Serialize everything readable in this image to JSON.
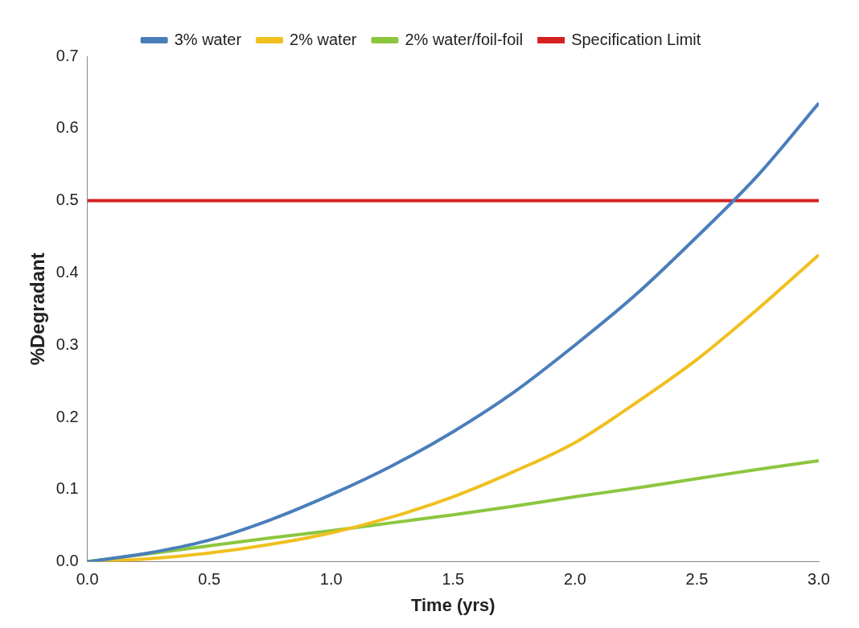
{
  "chart_data": {
    "type": "line",
    "xlabel": "Time (yrs)",
    "ylabel": "%Degradant",
    "x": [
      0,
      0.25,
      0.5,
      0.75,
      1.0,
      1.25,
      1.5,
      1.75,
      2.0,
      2.25,
      2.5,
      2.75,
      3.0
    ],
    "series": [
      {
        "name": "3% water",
        "color": "#4a7ebb",
        "values": [
          0,
          0.012,
          0.03,
          0.058,
          0.093,
          0.133,
          0.18,
          0.235,
          0.3,
          0.37,
          0.45,
          0.535,
          0.635
        ]
      },
      {
        "name": "2% water",
        "color": "#f0c020",
        "values": [
          0,
          0.004,
          0.012,
          0.024,
          0.04,
          0.062,
          0.09,
          0.125,
          0.165,
          0.22,
          0.28,
          0.35,
          0.425
        ]
      },
      {
        "name": "2% water/foil-foil",
        "color": "#8cc63f",
        "values": [
          0,
          0.011,
          0.022,
          0.033,
          0.043,
          0.054,
          0.065,
          0.077,
          0.09,
          0.102,
          0.115,
          0.128,
          0.14
        ]
      }
    ],
    "ref_lines": [
      {
        "axis": "y",
        "value": 0.5,
        "label": "Specification Limit",
        "color": "#d42020"
      }
    ],
    "xlim": [
      0,
      3
    ],
    "xticks": [
      {
        "value": 0,
        "label": "0.0"
      },
      0.5,
      {
        "value": 1,
        "label": "1.0"
      },
      1.5,
      {
        "value": 2,
        "label": "2.0"
      },
      2.5,
      {
        "value": 3,
        "label": "3.0"
      }
    ],
    "ylim": [
      0,
      0.7
    ],
    "yticks": [
      {
        "value": 0,
        "label": "0.0"
      },
      0.1,
      0.2,
      0.3,
      0.4,
      0.5,
      0.6,
      0.7
    ],
    "grid": false,
    "legend": "top",
    "marker": "none",
    "line_style": "solid"
  }
}
